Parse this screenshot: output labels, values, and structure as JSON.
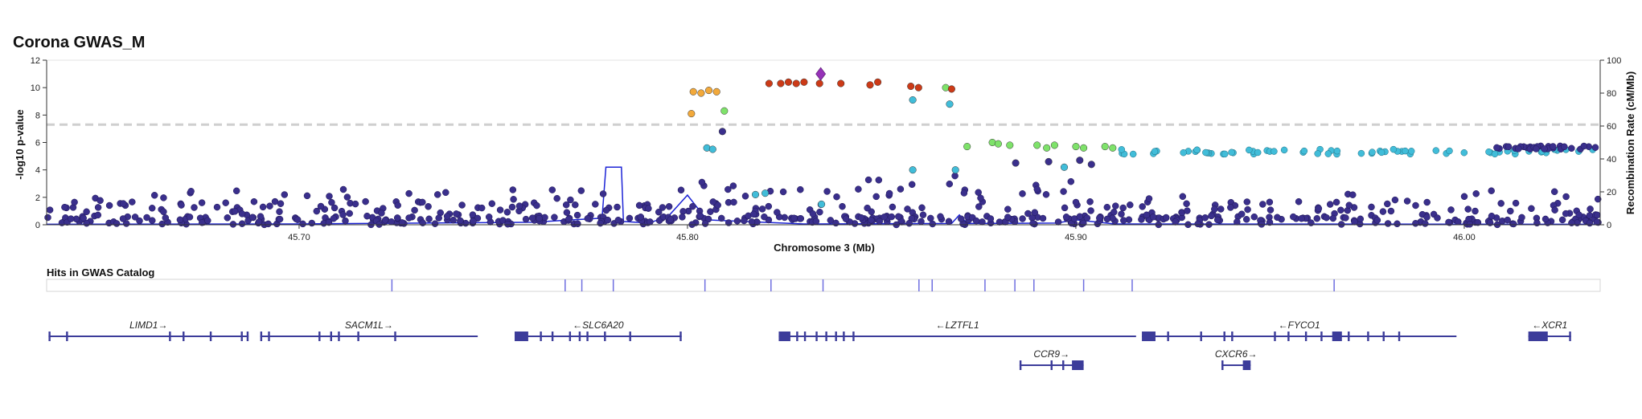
{
  "title": "Corona GWAS_M",
  "colors": {
    "r2_bins": {
      "lt02": "#3a2f8c",
      "r02": "#41bdd9",
      "r04": "#7ee26a",
      "r06": "#f2a93b",
      "r08": "#cc3a17",
      "lead": "#9632b8",
      "none": "#a8a8a8"
    },
    "recomb": "#1d24d6",
    "gene": "#3c3c9a",
    "axis": "#333333",
    "threshold": "#cfcfcf",
    "catalog_hit": "#6f6fe0"
  },
  "chart_data": {
    "type": "scatter",
    "title": "Corona GWAS_M",
    "xlabel": "Chromosome 3 (Mb)",
    "ylabel": "-log10 p-value",
    "y2label": "Recombination Rate (cM/Mb)",
    "xlim": [
      45.635,
      46.035
    ],
    "ylim": [
      0,
      12
    ],
    "y2lim": [
      0,
      100
    ],
    "xticks": [
      45.7,
      45.8,
      45.9,
      46.0
    ],
    "xtick_labels": [
      "45.70",
      "45.80",
      "45.90",
      "46.00"
    ],
    "yticks": [
      0,
      2,
      4,
      6,
      8,
      10,
      12
    ],
    "y2ticks": [
      0,
      20,
      40,
      60,
      80,
      100
    ],
    "significance_threshold": 7.3,
    "lead_variant": {
      "x": 45.8343,
      "y": 11.0
    },
    "ld_colored_variants": [
      [
        45.8015,
        9.7,
        "r06"
      ],
      [
        45.8035,
        9.6,
        "r06"
      ],
      [
        45.8055,
        9.8,
        "r06"
      ],
      [
        45.8075,
        9.7,
        "r06"
      ],
      [
        45.801,
        8.1,
        "r06"
      ],
      [
        45.8095,
        8.3,
        "r04"
      ],
      [
        45.821,
        10.3,
        "r08"
      ],
      [
        45.824,
        10.3,
        "r08"
      ],
      [
        45.826,
        10.4,
        "r08"
      ],
      [
        45.828,
        10.3,
        "r08"
      ],
      [
        45.83,
        10.4,
        "r08"
      ],
      [
        45.834,
        10.3,
        "r08"
      ],
      [
        45.8395,
        10.3,
        "r08"
      ],
      [
        45.847,
        10.2,
        "r08"
      ],
      [
        45.849,
        10.4,
        "r08"
      ],
      [
        45.8575,
        10.1,
        "r08"
      ],
      [
        45.8595,
        10.0,
        "r08"
      ],
      [
        45.8665,
        10.0,
        "r04"
      ],
      [
        45.868,
        9.9,
        "r08"
      ],
      [
        45.805,
        5.6,
        "r02"
      ],
      [
        45.8065,
        5.5,
        "r02"
      ],
      [
        45.809,
        6.8,
        "lt02"
      ],
      [
        45.858,
        9.1,
        "r02"
      ],
      [
        45.8675,
        8.8,
        "r02"
      ],
      [
        45.869,
        4.0,
        "r02"
      ],
      [
        45.858,
        4.0,
        "r02"
      ],
      [
        45.8175,
        2.2,
        "r02"
      ],
      [
        45.82,
        2.3,
        "r02"
      ],
      [
        45.8345,
        1.5,
        "r02"
      ],
      [
        45.897,
        4.2,
        "r02"
      ],
      [
        45.8785,
        6.0,
        "r04"
      ],
      [
        45.88,
        5.9,
        "r04"
      ],
      [
        45.883,
        5.8,
        "r04"
      ],
      [
        45.89,
        5.8,
        "r04"
      ],
      [
        45.8925,
        5.6,
        "r04"
      ],
      [
        45.8945,
        5.8,
        "r04"
      ],
      [
        45.9,
        5.7,
        "r04"
      ],
      [
        45.902,
        5.6,
        "r04"
      ],
      [
        45.9075,
        5.7,
        "r04"
      ],
      [
        45.9095,
        5.6,
        "r04"
      ],
      [
        45.872,
        5.7,
        "r04"
      ],
      [
        45.904,
        4.4,
        "lt02"
      ],
      [
        45.893,
        4.6,
        "lt02"
      ],
      [
        45.901,
        4.7,
        "lt02"
      ],
      [
        45.8845,
        4.5,
        "lt02"
      ]
    ],
    "recombination_rate": [
      [
        45.635,
        0.3
      ],
      [
        45.7,
        0.5
      ],
      [
        45.76,
        1.5
      ],
      [
        45.778,
        4.0
      ],
      [
        45.779,
        35.0
      ],
      [
        45.783,
        35.0
      ],
      [
        45.7835,
        2.0
      ],
      [
        45.79,
        1.0
      ],
      [
        45.795,
        5.0
      ],
      [
        45.8,
        18.0
      ],
      [
        45.805,
        3.0
      ],
      [
        45.83,
        0.5
      ],
      [
        45.868,
        0.8
      ],
      [
        45.87,
        6.0
      ],
      [
        45.872,
        0.8
      ],
      [
        45.895,
        1.0
      ],
      [
        45.9,
        3.0
      ],
      [
        45.91,
        0.5
      ],
      [
        46.035,
        0.3
      ]
    ],
    "legend": []
  },
  "catalog": {
    "label": "Hits in GWAS Catalog",
    "hits": [
      45.7239,
      45.7685,
      45.7728,
      45.7809,
      45.8045,
      45.8215,
      45.8349,
      45.8596,
      45.863,
      45.8766,
      45.8843,
      45.8892,
      45.902,
      45.9145,
      45.9665
    ]
  },
  "genes": [
    {
      "name": "LIMD1→",
      "start": 45.6355,
      "end": 45.687,
      "row": 0,
      "exons": [
        [
          45.6355,
          45.636
        ],
        [
          45.64,
          45.6405
        ],
        [
          45.6665,
          45.667
        ],
        [
          45.67,
          45.6705
        ],
        [
          45.677,
          45.6775
        ],
        [
          45.685,
          45.6855
        ],
        [
          45.6865,
          45.687
        ]
      ]
    },
    {
      "name": "SACM1L→",
      "start": 45.69,
      "end": 45.746,
      "row": 0,
      "exons": [
        [
          45.69,
          45.6905
        ],
        [
          45.692,
          45.6925
        ],
        [
          45.705,
          45.7055
        ],
        [
          45.708,
          45.7085
        ],
        [
          45.71,
          45.7105
        ],
        [
          45.715,
          45.7155
        ],
        [
          45.7245,
          45.725
        ]
      ]
    },
    {
      "name": "←SLC6A20",
      "start": 45.7555,
      "end": 45.7985,
      "row": 0,
      "exons": [
        [
          45.7555,
          45.759
        ],
        [
          45.762,
          45.7625
        ],
        [
          45.765,
          45.7655
        ],
        [
          45.7695,
          45.77
        ],
        [
          45.772,
          45.7725
        ],
        [
          45.774,
          45.7745
        ],
        [
          45.7785,
          45.779
        ],
        [
          45.785,
          45.7855
        ],
        [
          45.798,
          45.7985
        ]
      ]
    },
    {
      "name": "←LZTFL1",
      "start": 45.8235,
      "end": 45.9155,
      "row": 0,
      "exons": [
        [
          45.8235,
          45.8265
        ],
        [
          45.828,
          45.8285
        ],
        [
          45.83,
          45.8305
        ],
        [
          45.833,
          45.8335
        ],
        [
          45.8355,
          45.836
        ],
        [
          45.838,
          45.8385
        ],
        [
          45.84,
          45.8405
        ],
        [
          45.8425,
          45.843
        ]
      ]
    },
    {
      "name": "←FYCO1",
      "start": 45.917,
      "end": 45.998,
      "row": 0,
      "exons": [
        [
          45.917,
          45.9205
        ],
        [
          45.9235,
          45.924
        ],
        [
          45.932,
          45.9325
        ],
        [
          45.938,
          45.9385
        ],
        [
          45.94,
          45.9405
        ],
        [
          45.951,
          45.9515
        ],
        [
          45.9545,
          45.955
        ],
        [
          45.959,
          45.9595
        ],
        [
          45.963,
          45.9635
        ],
        [
          45.966,
          45.9685
        ],
        [
          45.97,
          45.9705
        ],
        [
          45.975,
          45.9755
        ],
        [
          45.979,
          45.9795
        ],
        [
          45.983,
          45.9835
        ]
      ]
    },
    {
      "name": "←XCR1",
      "start": 46.0165,
      "end": 46.0275,
      "row": 0,
      "exons": [
        [
          46.0165,
          46.0215
        ],
        [
          46.027,
          46.0275
        ]
      ]
    },
    {
      "name": "CCR9→",
      "start": 45.8855,
      "end": 45.902,
      "row": 1,
      "exons": [
        [
          45.8855,
          45.886
        ],
        [
          45.8935,
          45.894
        ],
        [
          45.8965,
          45.897
        ],
        [
          45.899,
          45.902
        ]
      ]
    },
    {
      "name": "CXCR6→",
      "start": 45.9375,
      "end": 45.945,
      "row": 1,
      "exons": [
        [
          45.9375,
          45.938
        ],
        [
          45.943,
          45.945
        ]
      ]
    }
  ]
}
